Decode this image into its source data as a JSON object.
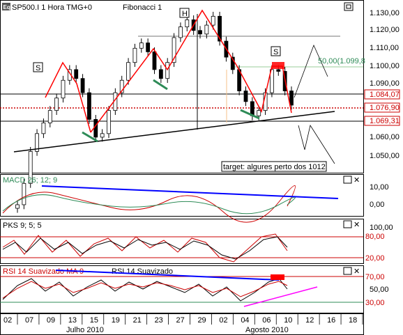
{
  "window": {
    "symbol": "SP500.I",
    "interval": "1 Hora",
    "timezone": "TMG+0",
    "indicator": "Fibonacci 1",
    "title": "SP500.I 1 Hora TMG+0"
  },
  "colors": {
    "price_up": "#ffffff",
    "price_down": "#000000",
    "trend_red": "#ff0000",
    "support_black": "#000000",
    "teal_marks": "#2e8b57",
    "macd_blue": "#0000ff",
    "rsi_magenta": "#ff00ff",
    "level_red": "#cc0000"
  },
  "price_panel": {
    "pattern_labels": [
      "S",
      "H",
      "S"
    ],
    "fib_label": "50,00(1.099,8",
    "target_note": "target: algures perto dos 1012",
    "highlight_levels": [
      "1.084,07",
      "1.076,90",
      "1.069,31"
    ],
    "y_ticks": [
      "1.130,00",
      "1.120,00",
      "1.110,00",
      "1.100,00",
      "1.090,00",
      "1.080,00",
      "1.060,00",
      "1.050,00"
    ]
  },
  "macd_panel": {
    "title": "MACD 26; 12; 9",
    "y_ticks": [
      "10,00",
      "0,00"
    ]
  },
  "pks_panel": {
    "title": "PKS 9; 5; 5",
    "y_ticks": [
      "100,00",
      "80,00",
      "20,00"
    ]
  },
  "rsi_panel": {
    "title": "RSI 14 Suavizado MA 9",
    "title2": "RSI 14 Suavizado",
    "y_ticks": [
      "70,00",
      "50,00",
      "30,00"
    ]
  },
  "x_axis": {
    "day_ticks": [
      "02",
      "07",
      "09",
      "13",
      "15",
      "19",
      "21",
      "23",
      "27",
      "29",
      "02",
      "04",
      "06",
      "10",
      "12",
      "16",
      "18"
    ],
    "months": [
      "Julho 2010",
      "Agosto 2010"
    ]
  },
  "chart_data": {
    "type": "candlestick",
    "series": [
      {
        "name": "SP500.I",
        "close": [
          1022,
          1034,
          1052,
          1062,
          1068,
          1075,
          1082,
          1092,
          1098,
          1093,
          1085,
          1070,
          1060,
          1062,
          1075,
          1085,
          1092,
          1102,
          1110,
          1113,
          1108,
          1098,
          1093,
          1102,
          1116,
          1122,
          1126,
          1120,
          1118,
          1123,
          1128,
          1114,
          1105,
          1098,
          1086,
          1080,
          1072,
          1075,
          1085,
          1098,
          1097,
          1086,
          1078
        ]
      }
    ],
    "ylim": [
      1040,
      1134
    ]
  }
}
